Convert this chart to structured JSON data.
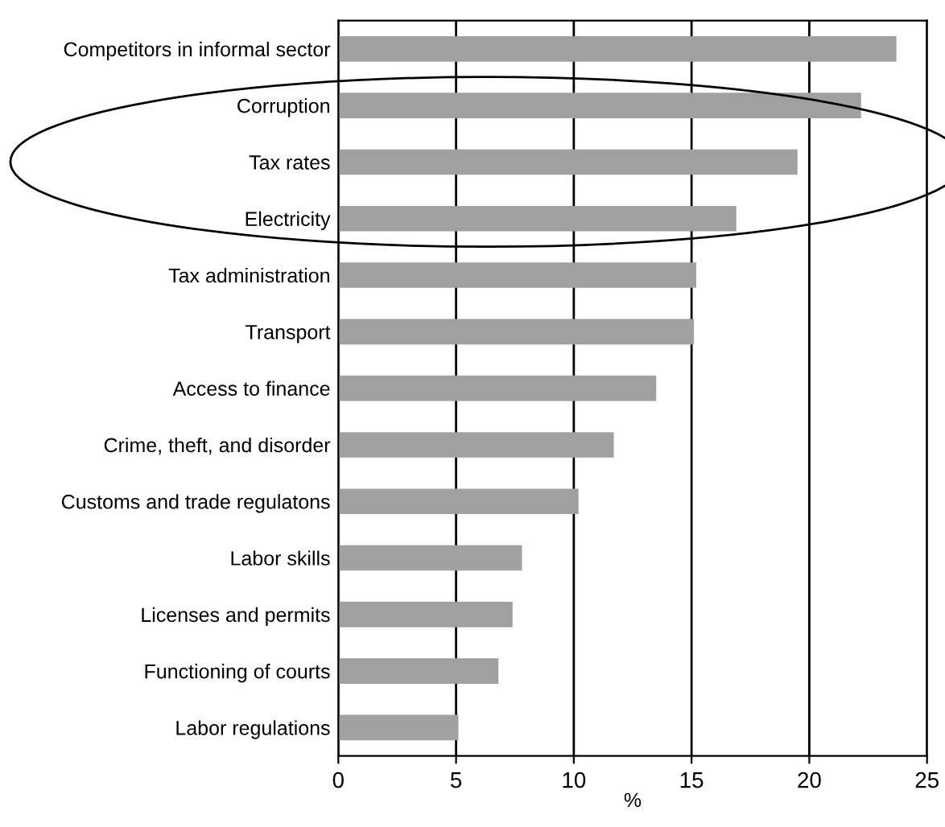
{
  "chart_data": {
    "type": "bar",
    "orientation": "horizontal",
    "xlabel": "%",
    "categories": [
      "Competitors in informal sector",
      "Corruption",
      "Tax rates",
      "Electricity",
      "Tax administration",
      "Transport",
      "Access to finance",
      "Crime, theft, and disorder",
      "Customs and trade regulatons",
      "Labor skills",
      "Licenses and permits",
      "Functioning of courts",
      "Labor regulations"
    ],
    "values": [
      23.7,
      22.2,
      19.5,
      16.9,
      15.2,
      15.1,
      13.5,
      11.7,
      10.2,
      7.8,
      7.4,
      6.8,
      5.1
    ],
    "color": "#a0a0a0",
    "xlim": [
      0,
      25
    ],
    "xticks": [
      0,
      5,
      10,
      15,
      20,
      25
    ],
    "grid": "x",
    "legend": false
  }
}
